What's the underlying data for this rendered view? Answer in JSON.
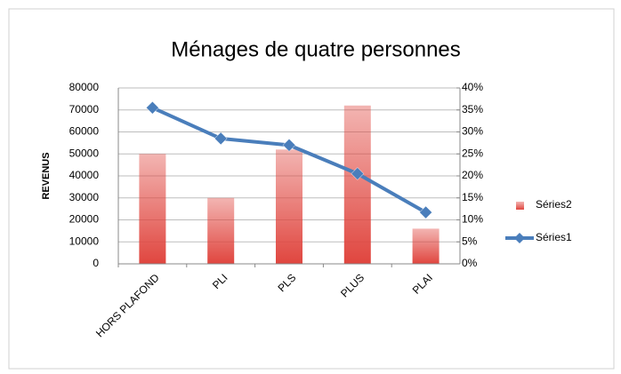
{
  "chart_data": {
    "type": "bar+line",
    "title": "Ménages de quatre personnes",
    "y_label": "REVENUS",
    "categories": [
      "HORS PLAFOND",
      "PLI",
      "PLS",
      "PLUS",
      "PLAI"
    ],
    "series": [
      {
        "name": "Séries2",
        "type": "bar",
        "color": "#e0463f",
        "values": [
          50000,
          30000,
          52000,
          72000,
          16000
        ]
      },
      {
        "name": "Séries1",
        "type": "line",
        "axis": "y2",
        "color": "#4a7ebb",
        "values": [
          35.5,
          28.5,
          27,
          20.5,
          11.7
        ]
      }
    ],
    "ylim": [
      0,
      80000
    ],
    "yticks": [
      0,
      10000,
      20000,
      30000,
      40000,
      50000,
      60000,
      70000,
      80000
    ],
    "y2lim": [
      0,
      40
    ],
    "y2ticks": [
      {
        "value": 0,
        "label": "0%"
      },
      {
        "value": 5,
        "label": "5%"
      },
      {
        "value": 10,
        "label": "10%"
      },
      {
        "value": 15,
        "label": "15%"
      },
      {
        "value": 20,
        "label": "20%"
      },
      {
        "value": 25,
        "label": "25%"
      },
      {
        "value": 30,
        "label": "30%"
      },
      {
        "value": 35,
        "label": "35%"
      },
      {
        "value": 40,
        "label": "40%"
      }
    ],
    "grid": true,
    "legend": "right"
  }
}
